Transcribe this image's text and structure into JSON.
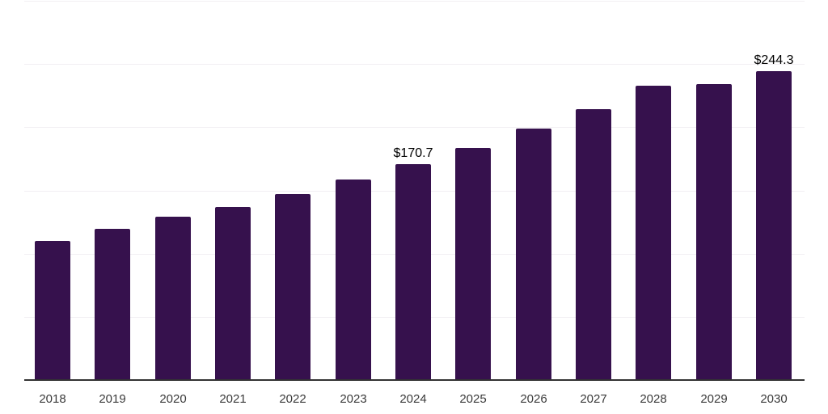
{
  "chart_data": {
    "type": "bar",
    "title": "",
    "xlabel": "",
    "ylabel": "",
    "categories": [
      "2018",
      "2019",
      "2020",
      "2021",
      "2022",
      "2023",
      "2024",
      "2025",
      "2026",
      "2027",
      "2028",
      "2029",
      "2030"
    ],
    "values": [
      109.9,
      119.7,
      129.1,
      136.9,
      147.1,
      158.6,
      170.7,
      183.4,
      198.8,
      214.2,
      233.0,
      234.4,
      244.3
    ],
    "point_labels": {
      "2024": "$170.7",
      "2030": "$244.3"
    },
    "ylim": [
      0,
      300
    ],
    "gridline_values": [
      50,
      100,
      150,
      200,
      250,
      300
    ],
    "grid": "horizontal",
    "legend": null,
    "colors": {
      "bar": "#36114d",
      "axis_line": "#333333",
      "tick_label": "#3a3a3a",
      "value_label": "#000000",
      "gridline": "#f2eff3",
      "background": "#ffffff"
    }
  }
}
